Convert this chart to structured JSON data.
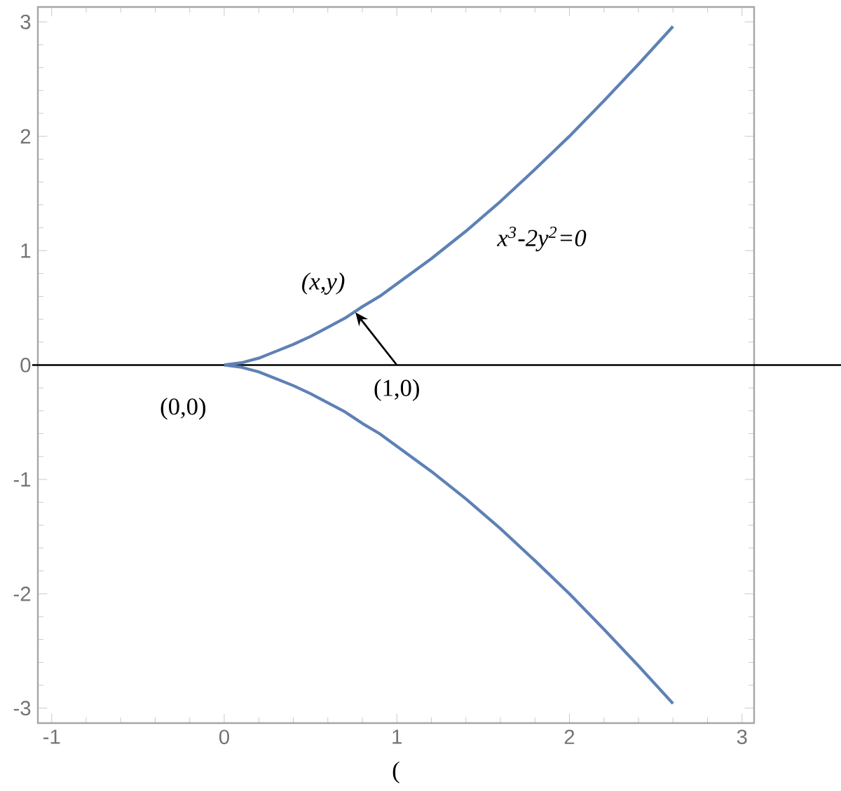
{
  "chart_data": {
    "type": "line",
    "x": [
      0,
      0.1,
      0.2,
      0.3,
      0.4,
      0.5,
      0.6,
      0.7,
      0.8,
      0.9,
      1.0,
      1.2,
      1.4,
      1.6,
      1.8,
      2.0,
      2.2,
      2.4,
      2.6
    ],
    "series": [
      {
        "color": "#5e81b5",
        "values": [
          0,
          0.02,
          0.06,
          0.12,
          0.18,
          0.25,
          0.33,
          0.41,
          0.51,
          0.6,
          0.71,
          0.93,
          1.17,
          1.43,
          1.71,
          2.0,
          2.31,
          2.63,
          2.96
        ]
      },
      {
        "color": "#5e81b5",
        "values": [
          0,
          -0.02,
          -0.06,
          -0.12,
          -0.18,
          -0.25,
          -0.33,
          -0.41,
          -0.51,
          -0.6,
          -0.71,
          -0.93,
          -1.17,
          -1.43,
          -1.71,
          -2.0,
          -2.31,
          -2.63,
          -2.96
        ]
      }
    ],
    "xlim": [
      -1.08,
      3.07
    ],
    "ylim": [
      -3.13,
      3.13
    ],
    "xticks": [
      -1,
      0,
      1,
      2,
      3
    ],
    "yticks": [
      -3,
      -2,
      -1,
      0,
      1,
      2,
      3
    ],
    "ref_lines": [
      {
        "axis": "y",
        "value": 0,
        "color": "#000000"
      }
    ],
    "annotations": [
      {
        "text": "(x,y)",
        "x": 0.76,
        "y": 0.46
      },
      {
        "text": "(1,0)",
        "x": 1,
        "y": 0
      },
      {
        "text": "(0,0)",
        "x": 0,
        "y": 0
      },
      {
        "text": "x$^{3}$-2y$^{2}$=0",
        "x": 1.5,
        "y": 1.3
      },
      "("
    ]
  }
}
